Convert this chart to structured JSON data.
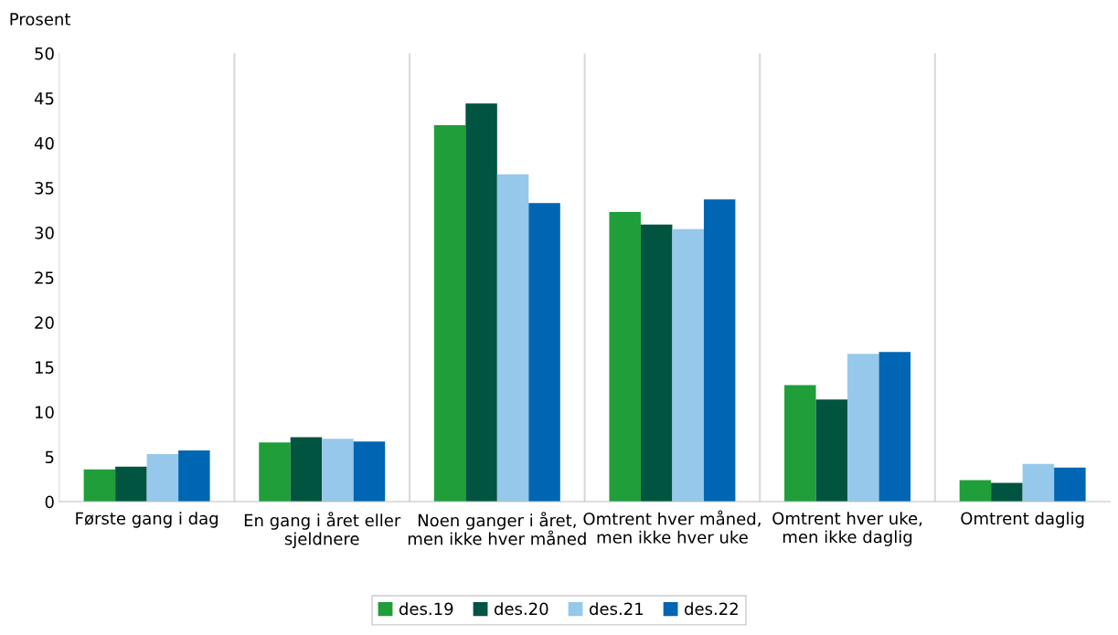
{
  "chart_data": {
    "type": "bar",
    "ylabel": "Prosent",
    "categories": [
      "Første gang i dag",
      "En gang i året eller sjeldnere",
      "Noen ganger i året, men ikke hver måned",
      "Omtrent hver måned, men ikke hver uke",
      "Omtrent hver uke, men ikke daglig",
      "Omtrent daglig"
    ],
    "series": [
      {
        "name": "des.19",
        "color": "#1f9e3a",
        "values": [
          3.6,
          6.6,
          42.0,
          32.3,
          13.0,
          2.4
        ]
      },
      {
        "name": "des.20",
        "color": "#005440",
        "values": [
          3.9,
          7.2,
          44.4,
          30.9,
          11.4,
          2.1
        ]
      },
      {
        "name": "des.21",
        "color": "#96c8eb",
        "values": [
          5.3,
          7.0,
          36.5,
          30.4,
          16.5,
          4.2
        ]
      },
      {
        "name": "des.22",
        "color": "#0065b3",
        "values": [
          5.7,
          6.7,
          33.3,
          33.7,
          16.7,
          3.8
        ]
      }
    ],
    "ylim": [
      0,
      50
    ],
    "yticks": [
      0,
      5,
      10,
      15,
      20,
      25,
      30,
      35,
      40,
      45,
      50
    ],
    "grid": "x",
    "legend": "bottom"
  }
}
